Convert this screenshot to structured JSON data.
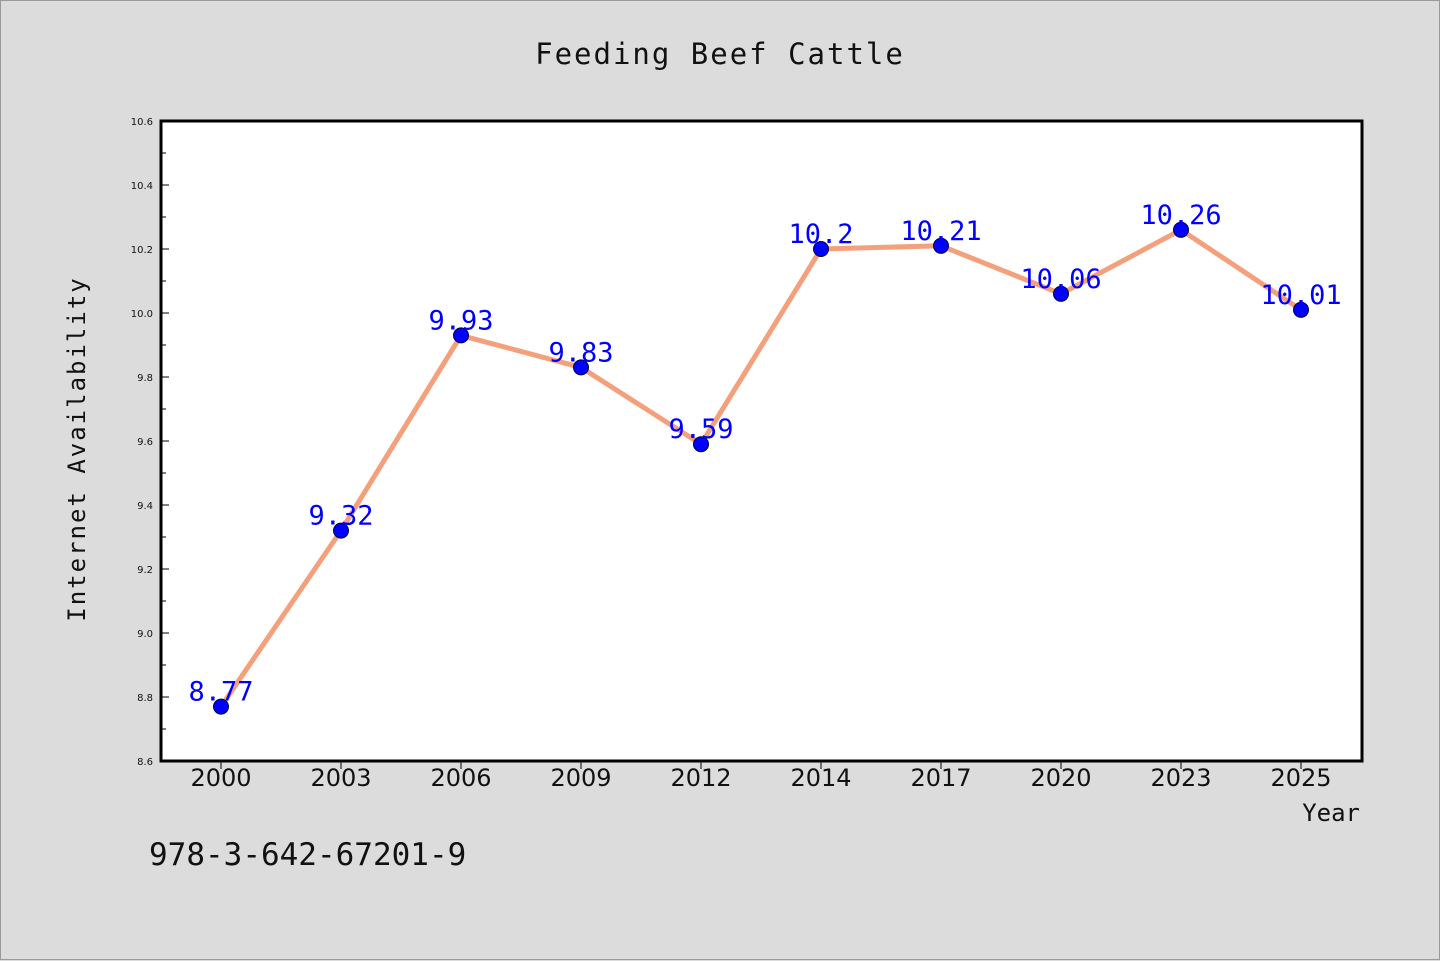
{
  "chart_data": {
    "type": "line",
    "title": "Feeding Beef Cattle",
    "xlabel": "Year",
    "ylabel": "Internet Availability",
    "categories": [
      "2000",
      "2003",
      "2006",
      "2009",
      "2012",
      "2014",
      "2017",
      "2020",
      "2023",
      "2025"
    ],
    "series": [
      {
        "values": [
          8.77,
          9.32,
          9.93,
          9.83,
          9.59,
          10.2,
          10.21,
          10.06,
          10.26,
          10.01
        ],
        "data_labels": [
          "8.77",
          "9.32",
          "9.93",
          "9.83",
          "9.59",
          "10.2",
          "10.21",
          "10.06",
          "10.26",
          "10.01"
        ],
        "line_color": "#f4a07c",
        "marker_color": "#0000ff"
      }
    ],
    "ylim": [
      8.6,
      10.6
    ],
    "yticks": [
      "8.6",
      "8.8",
      "9.0",
      "9.2",
      "9.4",
      "9.6",
      "9.8",
      "10.0",
      "10.2",
      "10.4",
      "10.6"
    ],
    "grid": false,
    "legend": "none"
  },
  "footer": {
    "isbn": "978-3-642-67201-9"
  },
  "colors": {
    "background": "#dcdcdc",
    "plot_background": "#ffffff",
    "line": "#f4a07c",
    "marker": "#0000ff",
    "label": "#0000ff"
  }
}
